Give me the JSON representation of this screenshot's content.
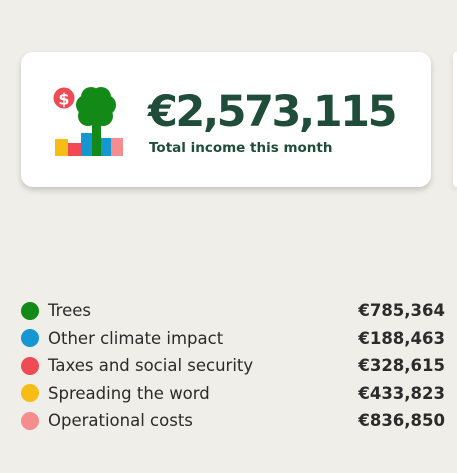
{
  "summary": {
    "amount": "€2,573,115",
    "subtitle": "Total income this month",
    "logo_icon": "tree-money-chart-icon"
  },
  "legend": [
    {
      "label": "Trees",
      "value": "€785,364",
      "color": "#138a18"
    },
    {
      "label": "Other climate impact",
      "value": "€188,463",
      "color": "#1597d1"
    },
    {
      "label": "Taxes and social security",
      "value": "€328,615",
      "color": "#f04b55"
    },
    {
      "label": "Spreading the word",
      "value": "€433,823",
      "color": "#f7bd15"
    },
    {
      "label": "Operational costs",
      "value": "€836,850",
      "color": "#f58c8e"
    }
  ]
}
